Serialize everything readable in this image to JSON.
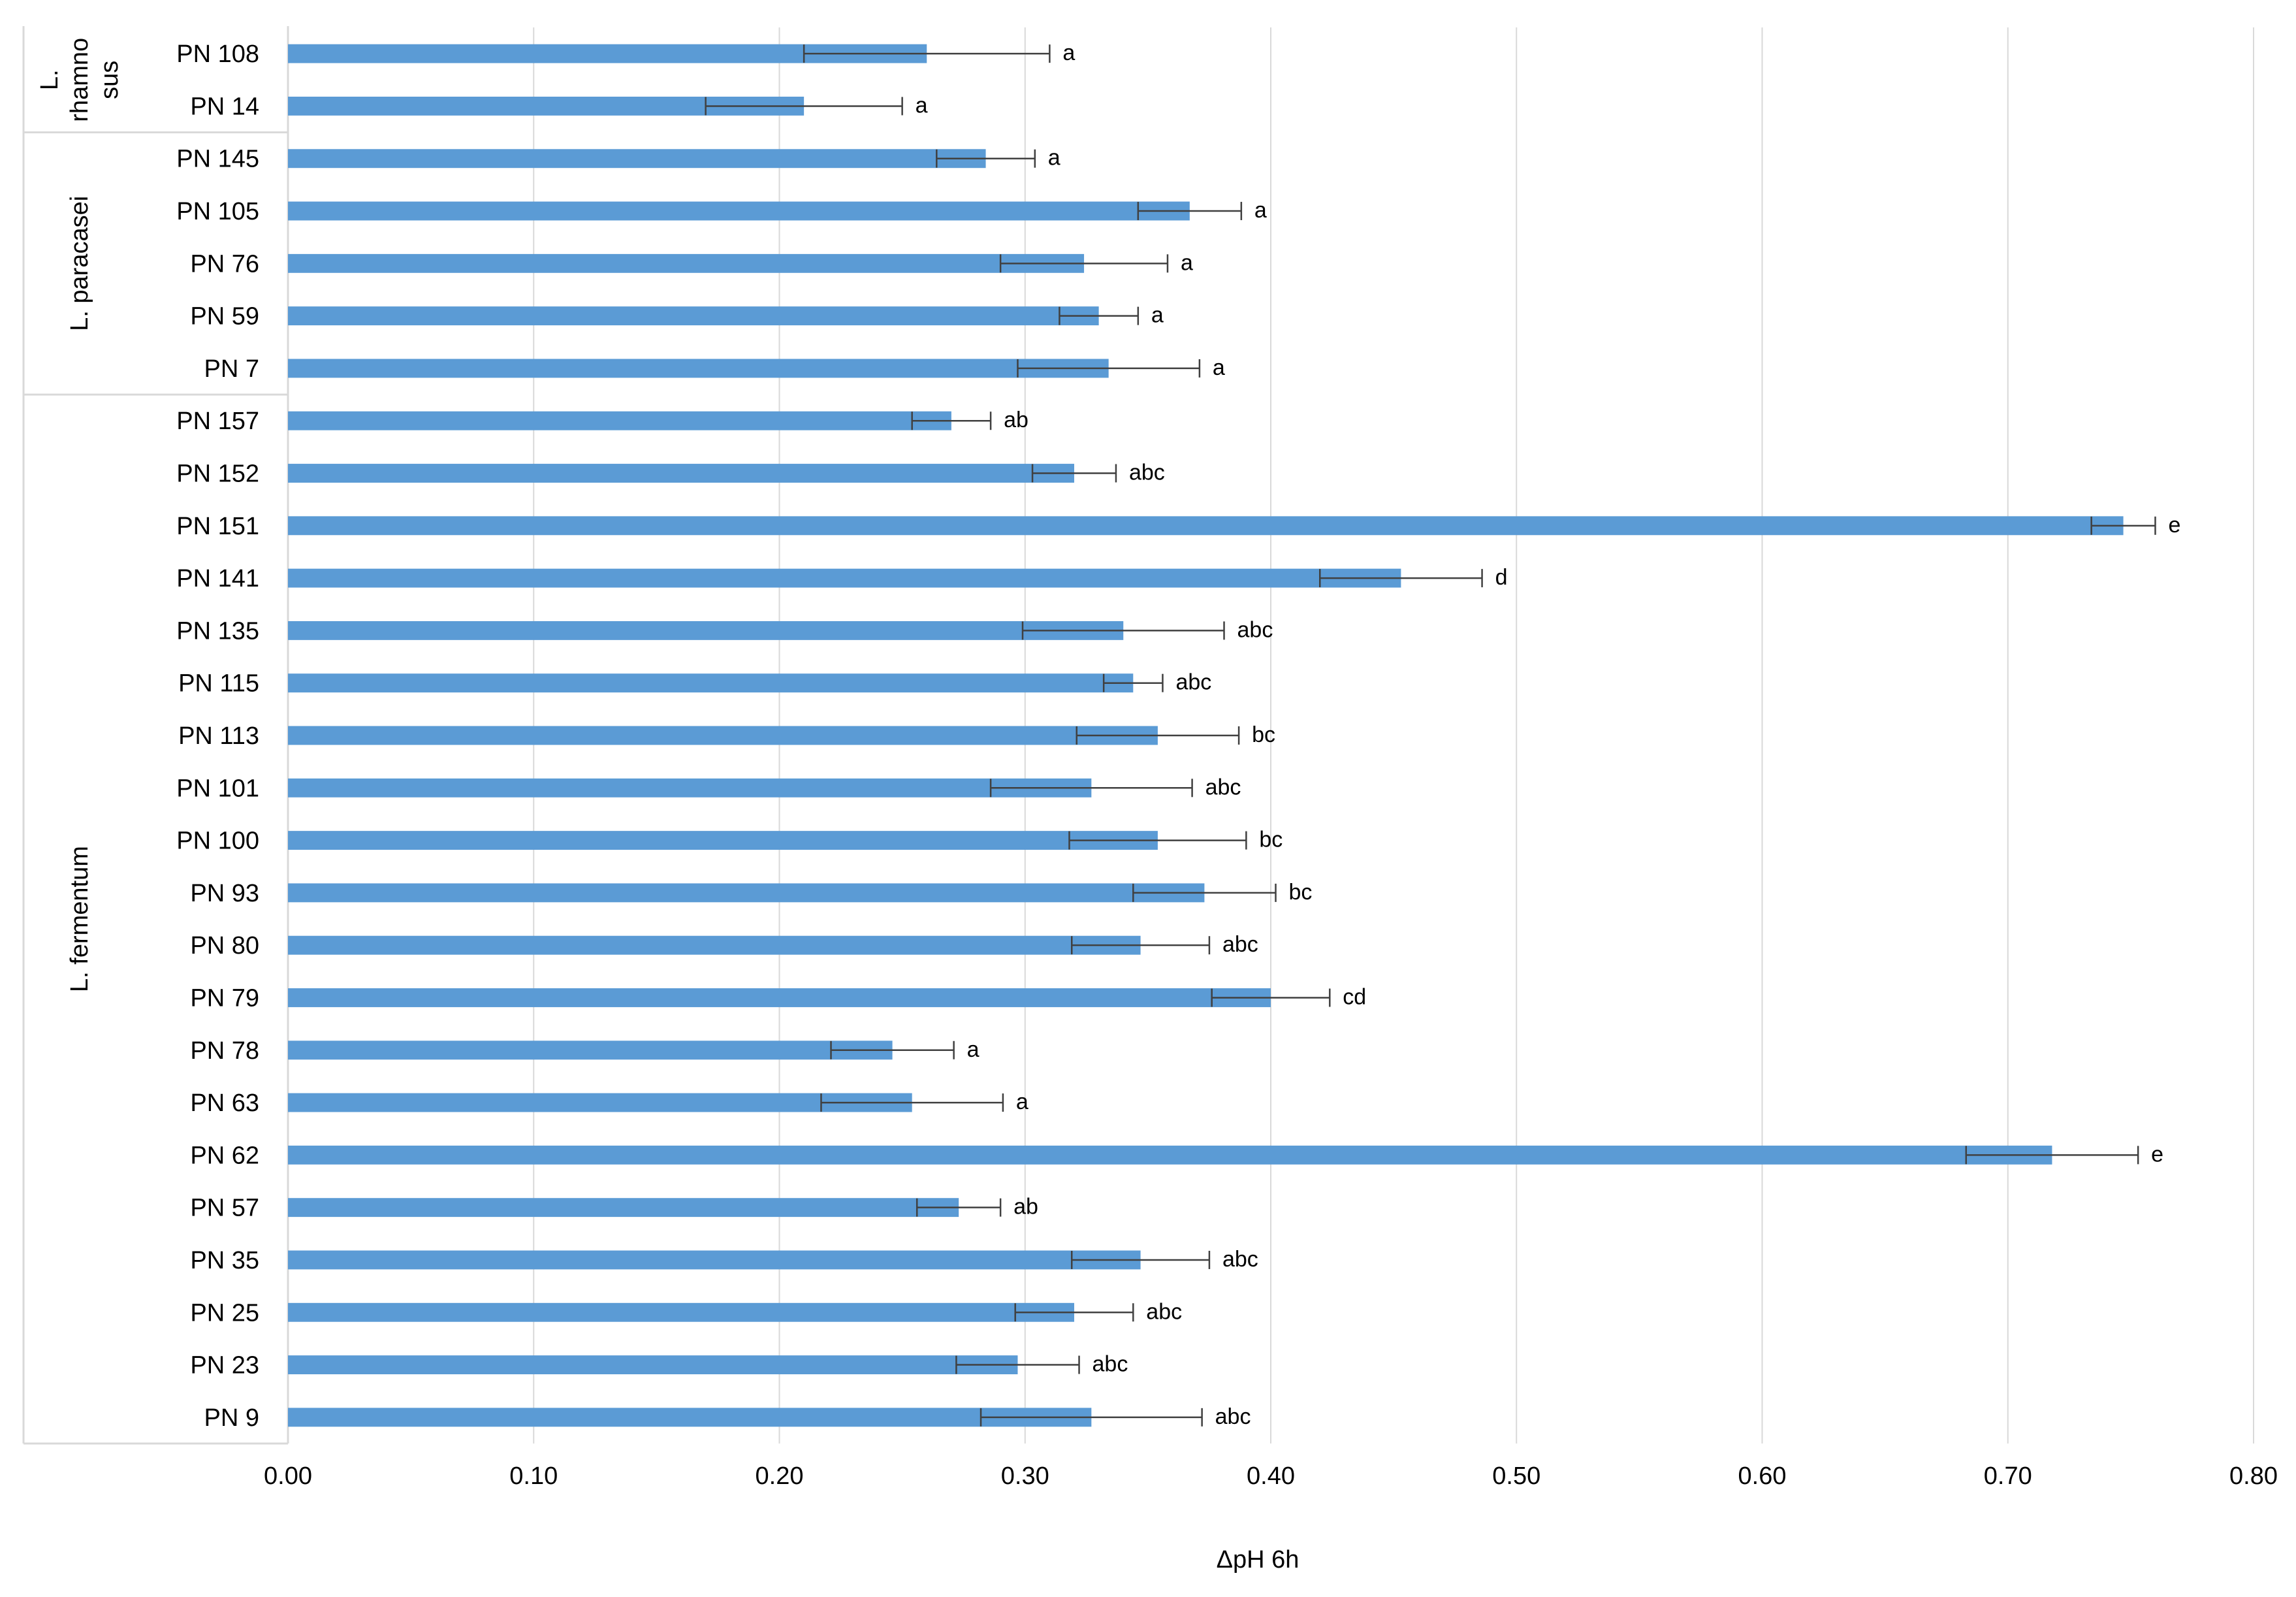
{
  "chart_data": {
    "type": "bar",
    "orientation": "horizontal",
    "title": "",
    "xlabel": "ΔpH 6h",
    "ylabel": "",
    "xlim": [
      0,
      0.8
    ],
    "x_ticks": [
      "0.00",
      "0.10",
      "0.20",
      "0.30",
      "0.40",
      "0.50",
      "0.60",
      "0.70",
      "0.80"
    ],
    "grid": "vertical",
    "legend": "none",
    "bar_color": "#5B9BD5",
    "groups": [
      {
        "label": "L. rhamnosus",
        "label_lines": [
          "L.",
          "rhamno",
          "sus"
        ],
        "strains": [
          "PN 108",
          "PN 14"
        ]
      },
      {
        "label": "L. paracasei",
        "label_lines": [
          "L. paracasei"
        ],
        "strains": [
          "PN 145",
          "PN 105",
          "PN 76",
          "PN 59",
          "PN 7"
        ]
      },
      {
        "label": "L. fermentum",
        "label_lines": [
          "L. fermentum"
        ],
        "strains": [
          "PN 157",
          "PN 152",
          "PN 151",
          "PN 141",
          "PN 135",
          "PN 115",
          "PN 113",
          "PN 101",
          "PN 100",
          "PN 93",
          "PN 80",
          "PN 79",
          "PN 78",
          "PN 63",
          "PN 62",
          "PN 57",
          "PN 35",
          "PN 25",
          "PN 23",
          "PN 9"
        ]
      }
    ],
    "series": [
      {
        "values": [
          0.26,
          0.21,
          0.284,
          0.367,
          0.324,
          0.33,
          0.334,
          0.27,
          0.32,
          0.747,
          0.453,
          0.34,
          0.344,
          0.354,
          0.327,
          0.354,
          0.373,
          0.347,
          0.4,
          0.246,
          0.254,
          0.718,
          0.273,
          0.347,
          0.32,
          0.297,
          0.327
        ],
        "errors": [
          0.05,
          0.04,
          0.02,
          0.021,
          0.034,
          0.016,
          0.037,
          0.016,
          0.017,
          0.013,
          0.033,
          0.041,
          0.012,
          0.033,
          0.041,
          0.036,
          0.029,
          0.028,
          0.024,
          0.025,
          0.037,
          0.035,
          0.017,
          0.028,
          0.024,
          0.025,
          0.045
        ],
        "annotations": [
          "a",
          "a",
          "a",
          "a",
          "a",
          "a",
          "a",
          "ab",
          "abc",
          "e",
          "d",
          "abc",
          "abc",
          "bc",
          "abc",
          "bc",
          "bc",
          "abc",
          "cd",
          "a",
          "a",
          "e",
          "ab",
          "abc",
          "abc",
          "abc",
          "abc"
        ]
      }
    ]
  }
}
